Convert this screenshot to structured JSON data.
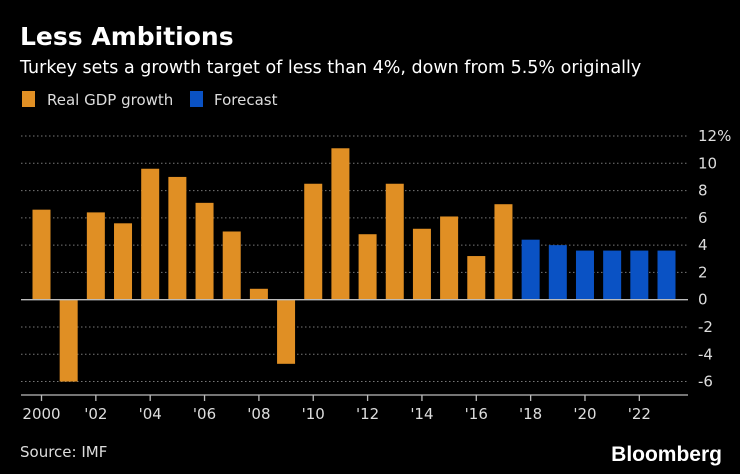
{
  "title": "Less Ambitions",
  "subtitle": "Turkey sets a growth target of less than 4%, down from 5.5% originally",
  "source": "Source: IMF",
  "logo": "Bloomberg",
  "chart_data": {
    "type": "bar",
    "title": "Less Ambitions",
    "legend": [
      {
        "name": "Real GDP growth",
        "color": "#e08f24"
      },
      {
        "name": "Forecast",
        "color": "#0a52c4"
      }
    ],
    "legend_placement": "top-left",
    "categories": [
      2000,
      2001,
      2002,
      2003,
      2004,
      2005,
      2006,
      2007,
      2008,
      2009,
      2010,
      2011,
      2012,
      2013,
      2014,
      2015,
      2016,
      2017,
      2018,
      2019,
      2020,
      2021,
      2022,
      2023
    ],
    "series": [
      {
        "name": "Real GDP growth",
        "values": [
          6.6,
          -6.0,
          6.4,
          5.6,
          9.6,
          9.0,
          7.1,
          5.0,
          0.8,
          -4.7,
          8.5,
          11.1,
          4.8,
          8.5,
          5.2,
          6.1,
          3.2,
          7.0,
          null,
          null,
          null,
          null,
          null,
          null
        ]
      },
      {
        "name": "Forecast",
        "values": [
          null,
          null,
          null,
          null,
          null,
          null,
          null,
          null,
          null,
          null,
          null,
          null,
          null,
          null,
          null,
          null,
          null,
          null,
          4.4,
          4.0,
          3.6,
          3.6,
          3.6,
          3.6
        ]
      }
    ],
    "x_tick_labels": [
      "2000",
      "'02",
      "'04",
      "'06",
      "'08",
      "'10",
      "'12",
      "'14",
      "'16",
      "'18",
      "'20",
      "'22"
    ],
    "y_tick_labels": [
      "12%",
      "10",
      "8",
      "6",
      "4",
      "2",
      "0",
      "-2",
      "-4",
      "-6"
    ],
    "ylim": [
      -6,
      12
    ],
    "y_axis_position": "right",
    "grid": true
  }
}
